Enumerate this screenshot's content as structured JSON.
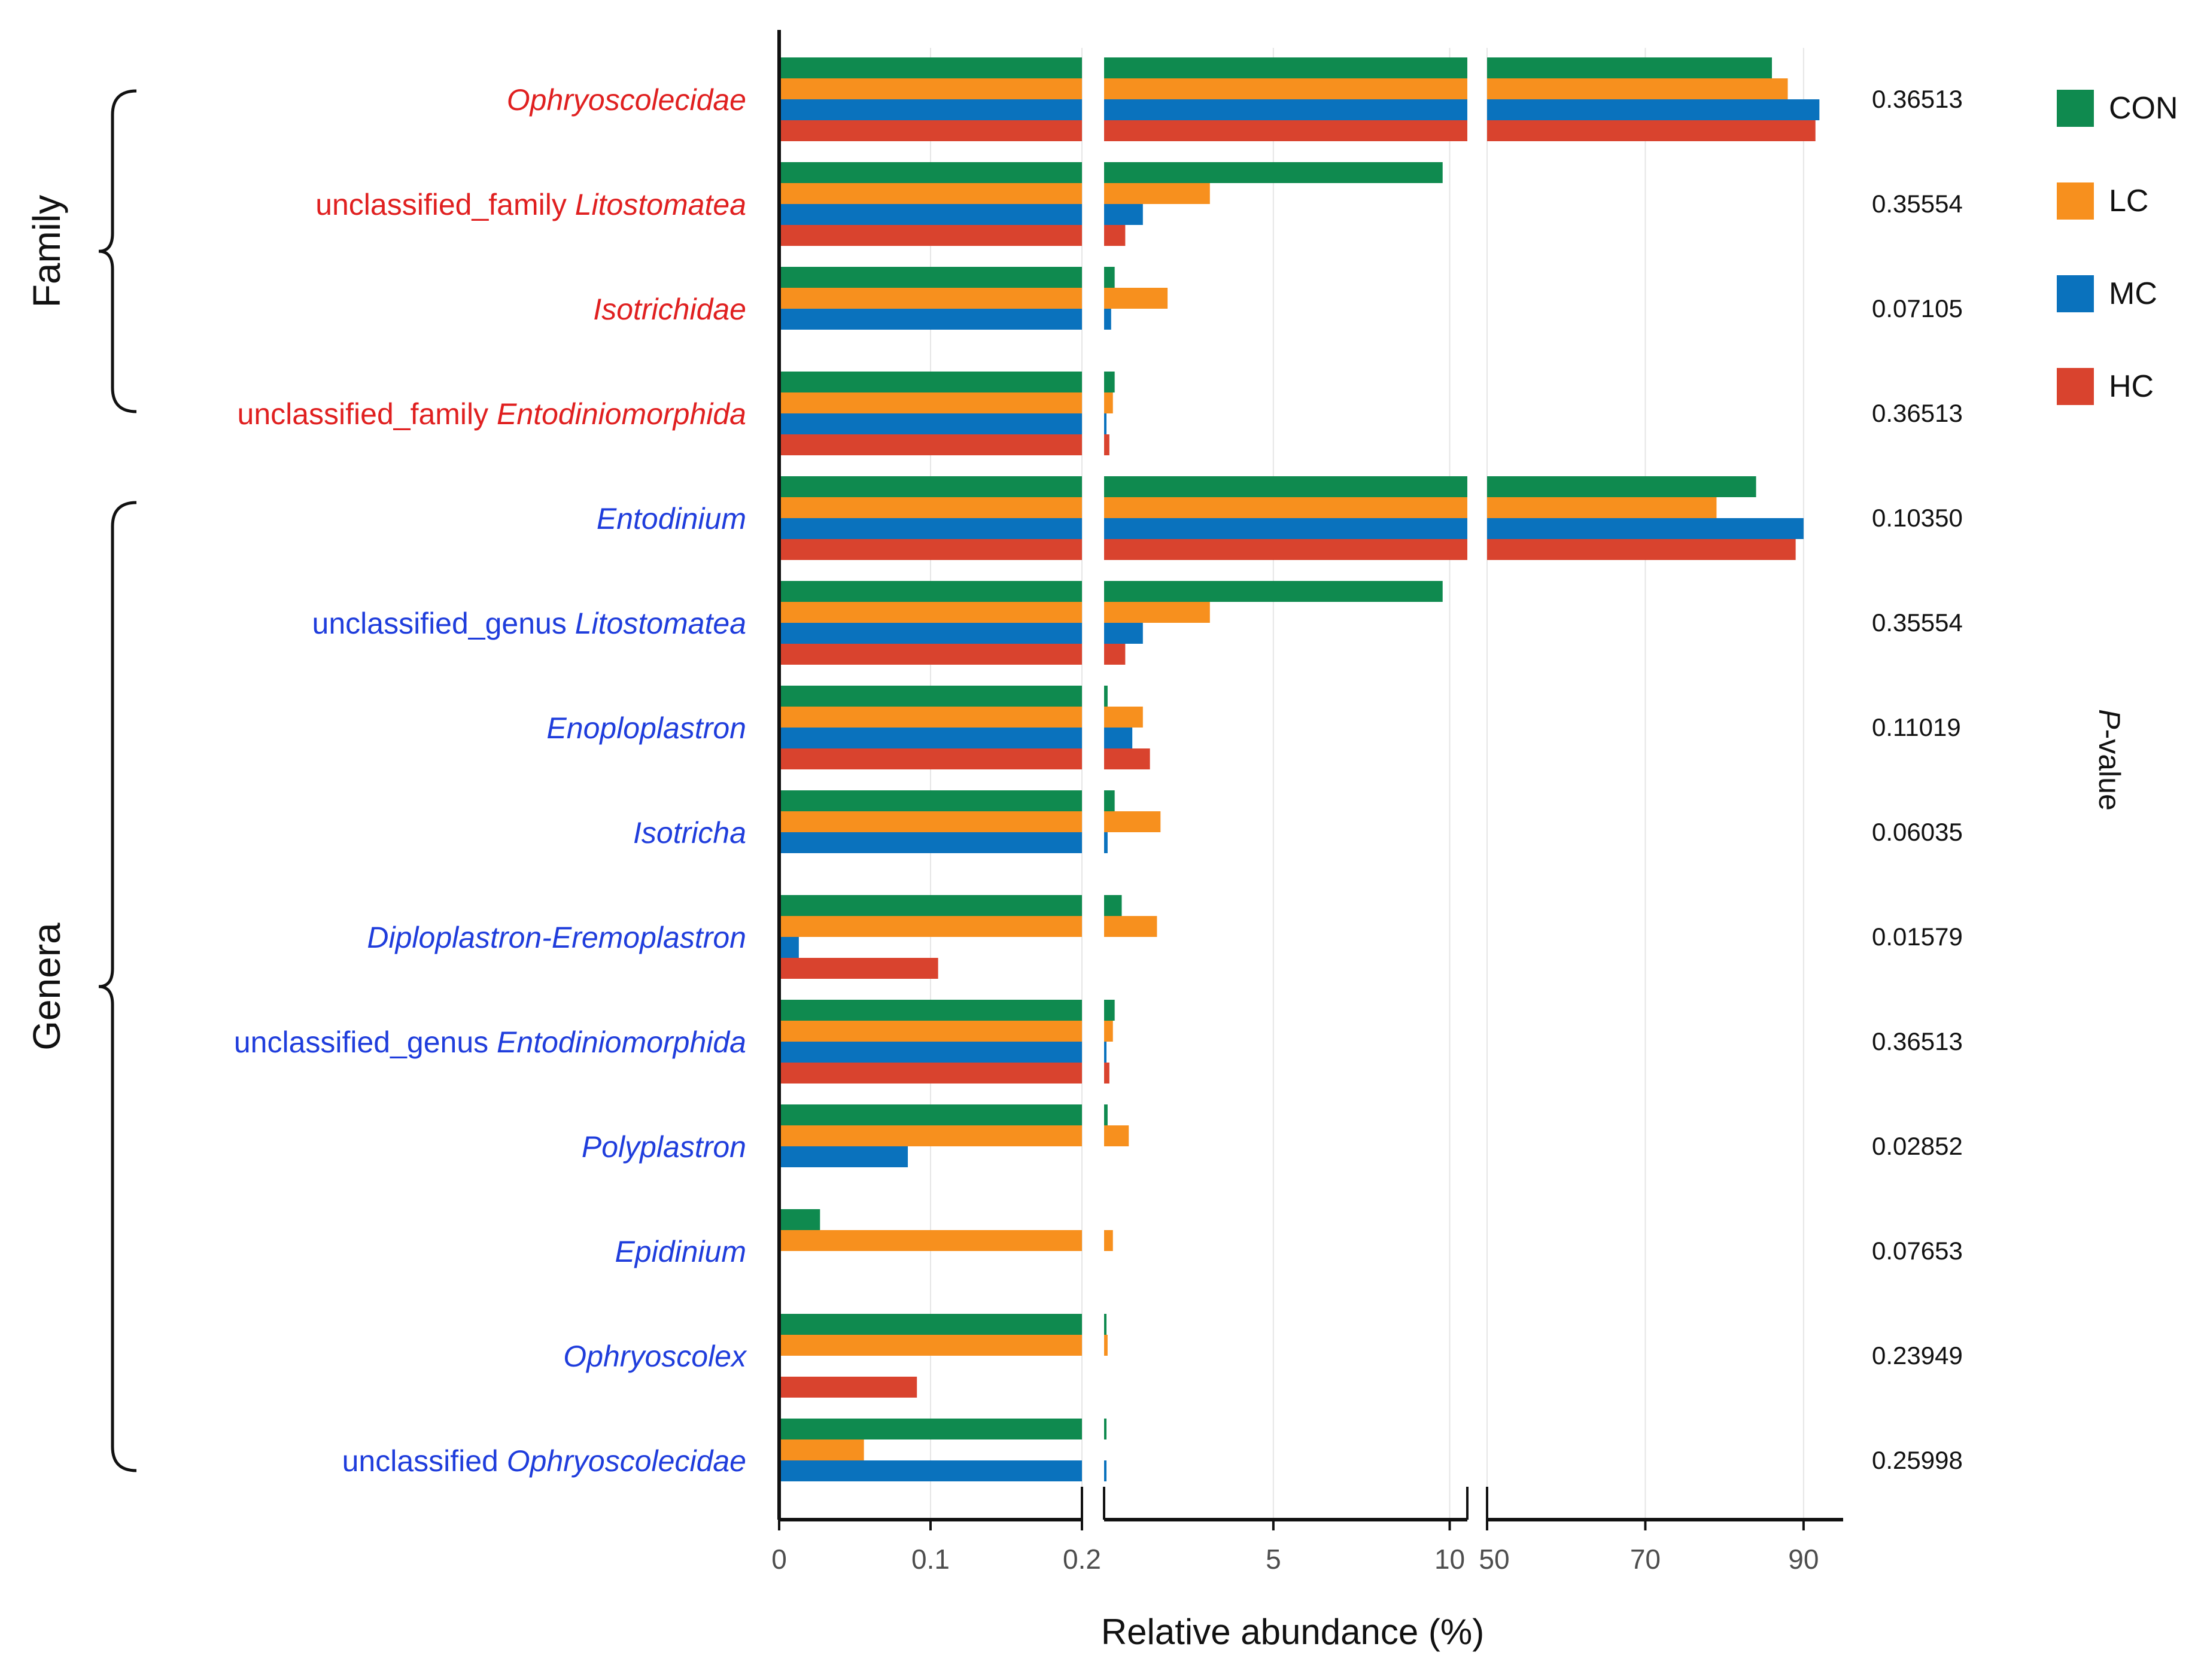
{
  "chart_data": {
    "type": "bar",
    "orientation": "horizontal",
    "xlabel": "Relative abundance (%)",
    "right_axis_label": "P-value",
    "axis_breaks": [
      {
        "range": [
          0,
          0.2
        ],
        "ticks": [
          0,
          0.1,
          0.2
        ],
        "tick_labels": [
          "0",
          "0.1",
          "0.2"
        ]
      },
      {
        "range": [
          0.2,
          10.5
        ],
        "ticks": [
          5,
          10
        ],
        "tick_labels": [
          "5",
          "10"
        ]
      },
      {
        "range": [
          50,
          95
        ],
        "ticks": [
          50,
          70,
          90
        ],
        "tick_labels": [
          "50",
          "70",
          "90"
        ]
      }
    ],
    "groups": [
      {
        "name": "Family",
        "color": "#e02020"
      },
      {
        "name": "Genera",
        "color": "#1f3ddc"
      }
    ],
    "series": [
      {
        "name": "CON",
        "color": "#0f8a4f"
      },
      {
        "name": "LC",
        "color": "#f7901e"
      },
      {
        "name": "MC",
        "color": "#0a72bd"
      },
      {
        "name": "HC",
        "color": "#d9432e"
      }
    ],
    "categories": [
      {
        "group": "Family",
        "label": [
          {
            "t": "Ophryoscolecidae",
            "it": true
          }
        ],
        "p": "0.36513",
        "values": [
          86,
          88,
          92,
          91.5
        ]
      },
      {
        "group": "Family",
        "label": [
          {
            "t": "unclassified_family ",
            "it": false
          },
          {
            "t": "Litostomatea",
            "it": true
          }
        ],
        "p": "0.35554",
        "values": [
          9.8,
          3.2,
          1.3,
          0.8
        ]
      },
      {
        "group": "Family",
        "label": [
          {
            "t": "Isotrichidae",
            "it": true
          }
        ],
        "p": "0.07105",
        "values": [
          0.5,
          2.0,
          0.4,
          null
        ]
      },
      {
        "group": "Family",
        "label": [
          {
            "t": "unclassified_family ",
            "it": false
          },
          {
            "t": "Entodiniomorphida",
            "it": true
          }
        ],
        "p": "0.36513",
        "values": [
          0.5,
          0.45,
          0.25,
          0.35
        ]
      },
      {
        "group": "Genera",
        "label": [
          {
            "t": "Entodinium",
            "it": true
          }
        ],
        "p": "0.10350",
        "values": [
          84,
          79,
          90,
          89
        ]
      },
      {
        "group": "Genera",
        "label": [
          {
            "t": "unclassified_genus ",
            "it": false
          },
          {
            "t": "Litostomatea",
            "it": true
          }
        ],
        "p": "0.35554",
        "values": [
          9.8,
          3.2,
          1.3,
          0.8
        ]
      },
      {
        "group": "Genera",
        "label": [
          {
            "t": "Enoploplastron",
            "it": true
          }
        ],
        "p": "0.11019",
        "values": [
          0.3,
          1.3,
          1.0,
          1.5
        ]
      },
      {
        "group": "Genera",
        "label": [
          {
            "t": "Isotricha",
            "it": true
          }
        ],
        "p": "0.06035",
        "values": [
          0.5,
          1.8,
          0.3,
          null
        ]
      },
      {
        "group": "Genera",
        "label": [
          {
            "t": "Diploplastron-Eremoplastron",
            "it": true
          }
        ],
        "p": "0.01579",
        "values": [
          0.7,
          1.7,
          0.013,
          0.105
        ]
      },
      {
        "group": "Genera",
        "label": [
          {
            "t": "unclassified_genus ",
            "it": false
          },
          {
            "t": "Entodiniomorphida",
            "it": true
          }
        ],
        "p": "0.36513",
        "values": [
          0.5,
          0.45,
          0.25,
          0.35
        ]
      },
      {
        "group": "Genera",
        "label": [
          {
            "t": "Polyplastron",
            "it": true
          }
        ],
        "p": "0.02852",
        "values": [
          0.3,
          0.9,
          0.085,
          null
        ]
      },
      {
        "group": "Genera",
        "label": [
          {
            "t": "Epidinium",
            "it": true
          }
        ],
        "p": "0.07653",
        "values": [
          0.027,
          0.45,
          null,
          null
        ]
      },
      {
        "group": "Genera",
        "label": [
          {
            "t": "Ophryoscolex",
            "it": true
          }
        ],
        "p": "0.23949",
        "values": [
          0.25,
          0.3,
          null,
          0.091
        ]
      },
      {
        "group": "Genera",
        "label": [
          {
            "t": "unclassified ",
            "it": false
          },
          {
            "t": "Ophryoscolecidae",
            "it": true
          }
        ],
        "p": "0.25998",
        "values": [
          0.25,
          0.056,
          0.25,
          null
        ]
      }
    ]
  }
}
